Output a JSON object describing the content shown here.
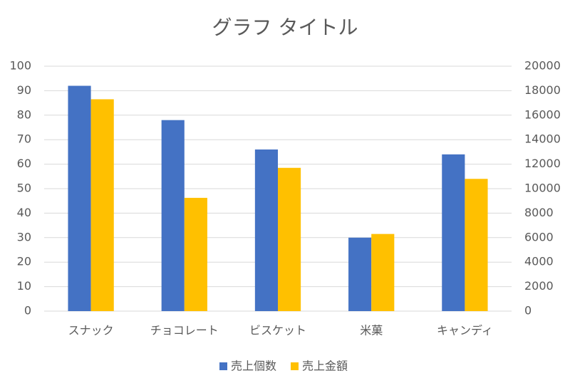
{
  "chart_data": {
    "type": "bar",
    "title": "グラフ タイトル",
    "categories": [
      "スナック",
      "チョコレート",
      "ビスケット",
      "米菓",
      "キャンディ"
    ],
    "series": [
      {
        "name": "売上個数",
        "color": "#4472c4",
        "values": [
          92,
          78,
          66,
          30,
          64
        ]
      },
      {
        "name": "売上金額",
        "color": "#ffc000",
        "axis": "y2",
        "values": [
          17300,
          9250,
          11700,
          6300,
          10800
        ]
      }
    ],
    "ylim": [
      0,
      100
    ],
    "yticks": [
      0,
      10,
      20,
      30,
      40,
      50,
      60,
      70,
      80,
      90,
      100
    ],
    "y2lim": [
      0,
      20000
    ],
    "y2ticks": [
      0,
      2000,
      4000,
      6000,
      8000,
      10000,
      12000,
      14000,
      16000,
      18000,
      20000
    ],
    "grid": true,
    "legend": "bottom"
  }
}
